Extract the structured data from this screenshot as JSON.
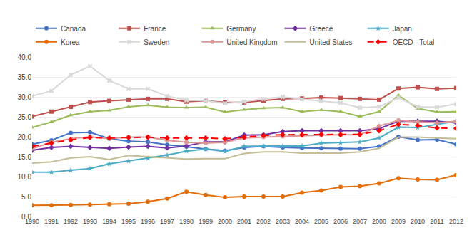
{
  "chart_data": {
    "type": "line",
    "x": [
      1990,
      1991,
      1992,
      1993,
      1994,
      1995,
      1996,
      1997,
      1998,
      1999,
      2000,
      2001,
      2002,
      2003,
      2004,
      2005,
      2006,
      2007,
      2008,
      2009,
      2010,
      2011,
      2012
    ],
    "series": [
      {
        "name": "Canada",
        "color": "#4472C4",
        "marker": "circle",
        "line_style": "solid",
        "values": [
          18.1,
          19.1,
          21.0,
          21.1,
          19.5,
          18.9,
          18.7,
          18.0,
          17.5,
          16.9,
          16.5,
          17.3,
          17.6,
          17.3,
          17.2,
          17.1,
          17.0,
          17.0,
          17.6,
          20.0,
          19.2,
          19.3,
          18.1
        ]
      },
      {
        "name": "France",
        "color": "#C0504D",
        "marker": "square",
        "line_style": "solid",
        "values": [
          25.1,
          26.3,
          27.5,
          28.7,
          29.0,
          29.3,
          29.5,
          29.5,
          28.8,
          29.0,
          28.6,
          28.6,
          29.1,
          29.5,
          29.6,
          29.8,
          29.7,
          29.5,
          29.3,
          32.1,
          32.4,
          32.0,
          32.2
        ]
      },
      {
        "name": "Germany",
        "color": "#9BBB59",
        "marker": "triangle-up",
        "line_style": "solid",
        "values": [
          22.3,
          23.7,
          25.4,
          26.3,
          26.6,
          27.5,
          27.9,
          27.4,
          27.3,
          27.4,
          26.2,
          26.8,
          27.2,
          27.3,
          26.3,
          26.7,
          26.3,
          25.1,
          26.3,
          30.4,
          27.1,
          26.2,
          26.3
        ]
      },
      {
        "name": "Greece",
        "color": "#7030A0",
        "marker": "diamond",
        "line_style": "solid",
        "values": [
          16.6,
          17.3,
          17.6,
          17.3,
          17.1,
          17.4,
          17.6,
          17.2,
          17.7,
          18.7,
          18.7,
          20.4,
          20.5,
          21.3,
          21.5,
          21.5,
          21.5,
          21.5,
          22.0,
          23.9,
          23.9,
          23.9,
          23.5
        ]
      },
      {
        "name": "Japan",
        "color": "#4BACC6",
        "marker": "star",
        "line_style": "solid",
        "values": [
          11.1,
          11.1,
          11.6,
          12.0,
          13.2,
          13.9,
          14.6,
          15.4,
          16.4,
          16.9,
          16.3,
          17.6,
          17.7,
          17.7,
          17.7,
          18.4,
          18.5,
          18.7,
          19.7,
          22.4,
          22.3,
          23.1,
          23.9
        ]
      },
      {
        "name": "Korea",
        "color": "#E36C09",
        "marker": "circle",
        "line_style": "solid",
        "values": [
          2.8,
          2.8,
          2.9,
          3.0,
          3.1,
          3.2,
          3.7,
          4.5,
          6.2,
          5.4,
          4.8,
          5.0,
          5.0,
          5.0,
          6.0,
          6.5,
          7.4,
          7.6,
          8.3,
          9.6,
          9.3,
          9.2,
          10.4
        ]
      },
      {
        "name": "Sweden",
        "color": "#D9D9D9",
        "marker": "x",
        "line_style": "solid",
        "values": [
          30.2,
          31.5,
          35.5,
          37.7,
          34.1,
          32.0,
          32.0,
          30.2,
          29.2,
          29.0,
          28.4,
          28.8,
          29.5,
          30.0,
          29.4,
          29.0,
          28.5,
          27.3,
          27.5,
          29.8,
          27.5,
          27.4,
          28.2
        ]
      },
      {
        "name": "United Kingdom",
        "color": "#D99694",
        "marker": "circle",
        "line_style": "solid",
        "values": [
          17.0,
          18.6,
          19.5,
          20.0,
          19.5,
          19.9,
          19.9,
          19.1,
          18.6,
          18.4,
          18.6,
          19.7,
          19.9,
          20.1,
          20.3,
          20.4,
          20.5,
          20.5,
          22.7,
          24.1,
          23.7,
          23.5,
          23.9
        ]
      },
      {
        "name": "United States",
        "color": "#C4BD97",
        "marker": "none",
        "line_style": "solid",
        "values": [
          13.4,
          13.7,
          14.7,
          15.0,
          14.3,
          15.3,
          15.0,
          14.7,
          14.4,
          14.5,
          14.5,
          15.8,
          16.2,
          16.2,
          15.9,
          15.9,
          15.9,
          16.2,
          17.1,
          19.9,
          19.9,
          19.7,
          19.5
        ]
      },
      {
        "name": "OECD - Total",
        "color": "#FF0000",
        "marker": "diamond",
        "line_style": "dash",
        "values": [
          17.6,
          18.4,
          19.2,
          19.8,
          19.7,
          19.8,
          19.9,
          19.7,
          19.7,
          19.7,
          19.5,
          19.9,
          20.3,
          20.5,
          20.5,
          20.6,
          20.5,
          20.6,
          21.5,
          23.1,
          22.8,
          22.2,
          22.1
        ]
      }
    ],
    "xlim": [
      1990,
      2012
    ],
    "xticks": [
      1990,
      1991,
      1992,
      1993,
      1994,
      1995,
      1996,
      1997,
      1998,
      1999,
      2000,
      2001,
      2002,
      2003,
      2004,
      2005,
      2006,
      2007,
      2008,
      2009,
      2010,
      2011,
      2012
    ],
    "ylim": [
      0.0,
      40.0
    ],
    "yticks": [
      {
        "value": 0,
        "label": "0.0"
      },
      {
        "value": 5,
        "label": "5.0"
      },
      {
        "value": 10,
        "label": "10.0"
      },
      {
        "value": 15,
        "label": "15.0"
      },
      {
        "value": 20,
        "label": "20.0"
      },
      {
        "value": 25,
        "label": "25.0"
      },
      {
        "value": 30,
        "label": "30.0"
      },
      {
        "value": 35,
        "label": "35.0"
      },
      {
        "value": 40,
        "label": "40.0"
      }
    ],
    "grid": true,
    "legend": "top"
  }
}
